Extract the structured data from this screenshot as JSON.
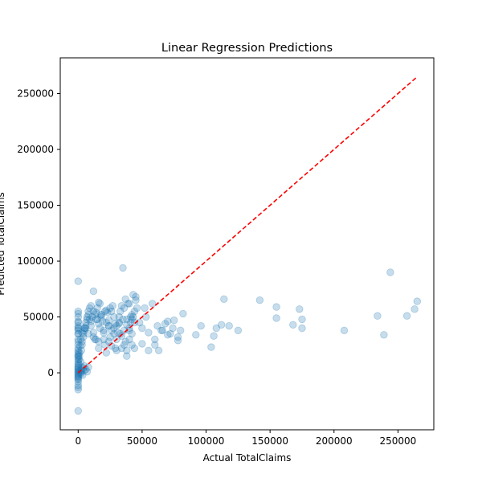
{
  "chart_data": {
    "type": "scatter",
    "title": "Linear Regression Predictions",
    "xlabel": "Actual TotalClaims",
    "ylabel": "Predicted TotalClaims",
    "xlim": [
      -14000,
      278000
    ],
    "ylim": [
      -51000,
      282000
    ],
    "xticks": [
      0,
      50000,
      100000,
      150000,
      200000,
      250000
    ],
    "yticks": [
      0,
      50000,
      100000,
      150000,
      200000,
      250000
    ],
    "grid": false,
    "colors": {
      "points": "#1f77b4",
      "reference_line": "#ff0000"
    },
    "points": {
      "name": "Predictions",
      "x": [
        0,
        0,
        0,
        0,
        0,
        0,
        0,
        0,
        0,
        0,
        0,
        0,
        0,
        0,
        0,
        0,
        0,
        0,
        0,
        0,
        0,
        0,
        0,
        0,
        0,
        0,
        0,
        0,
        0,
        0,
        0,
        0,
        0,
        0,
        0,
        0,
        0,
        0,
        0,
        0,
        0,
        0,
        1500,
        1500,
        2000,
        2500,
        2500,
        3000,
        3500,
        4000,
        4500,
        5000,
        6000,
        7000,
        8000,
        1000,
        2500,
        3000,
        4000,
        5000,
        6000,
        7000,
        8000,
        10000,
        2000,
        3000,
        4000,
        5000,
        6000,
        7000,
        8000,
        9000,
        500,
        700,
        1000,
        1500,
        2000,
        3000,
        10000,
        12000,
        14000,
        15000,
        16000,
        18000,
        20000,
        22000,
        24000,
        26000,
        28000,
        30000,
        32000,
        34000,
        36000,
        38000,
        40000,
        42000,
        44000,
        46000,
        11000,
        13000,
        15000,
        17000,
        19000,
        21000,
        23000,
        25000,
        27000,
        29000,
        31000,
        33000,
        35000,
        37000,
        39000,
        41000,
        43000,
        45000,
        12000,
        14000,
        16000,
        18000,
        20000,
        22000,
        24000,
        26000,
        28000,
        30000,
        32000,
        34000,
        36000,
        38000,
        40000,
        42000,
        44000,
        6000,
        8000,
        10000,
        12000,
        14000,
        16000,
        18000,
        20000,
        22000,
        24000,
        26000,
        28000,
        30000,
        32000,
        34000,
        36000,
        38000,
        40000,
        42000,
        44000,
        5000,
        9000,
        13000,
        17000,
        21000,
        25000,
        29000,
        33000,
        37000,
        41000,
        45000,
        16000,
        24000,
        38000,
        40000,
        42000,
        35000,
        43000,
        12000,
        48000,
        50000,
        52000,
        53000,
        55000,
        58000,
        60000,
        62000,
        65000,
        68000,
        70000,
        72000,
        75000,
        78000,
        80000,
        82000,
        50000,
        55000,
        60000,
        63000,
        66000,
        70000,
        74000,
        78000,
        92000,
        96000,
        104000,
        106000,
        108000,
        112000,
        114000,
        118000,
        125000,
        142000,
        155000,
        155000,
        168000,
        173000,
        175000,
        175000,
        208000,
        234000,
        239000,
        244000,
        257000,
        263000,
        265000
      ],
      "y": [
        0,
        -1000,
        -2000,
        -3000,
        1000,
        2000,
        3000,
        4000,
        -4000,
        5000,
        -5000,
        6000,
        8000,
        10000,
        12000,
        15000,
        18000,
        20000,
        25000,
        28000,
        30000,
        35000,
        38000,
        40000,
        42000,
        45000,
        50000,
        53000,
        55000,
        -8000,
        -11000,
        -13000,
        -34000,
        82000,
        40000,
        46000,
        35000,
        22000,
        16000,
        14000,
        -6000,
        -15000,
        0,
        2000,
        -1000,
        3000,
        1000,
        5000,
        -2000,
        4000,
        2000,
        6000,
        3000,
        1000,
        5000,
        15000,
        20000,
        25000,
        35000,
        40000,
        45000,
        50000,
        55000,
        60000,
        10000,
        28000,
        32000,
        38000,
        42000,
        48000,
        52000,
        58000,
        8000,
        12000,
        18000,
        24000,
        30000,
        36000,
        42000,
        55000,
        30000,
        48000,
        22000,
        52000,
        38000,
        45000,
        28000,
        55000,
        35000,
        42000,
        50000,
        60000,
        25000,
        48000,
        38000,
        52000,
        45000,
        58000,
        50000,
        30000,
        58000,
        40000,
        46000,
        25000,
        54000,
        32000,
        60000,
        44000,
        36000,
        55000,
        48000,
        28000,
        62000,
        45000,
        50000,
        65000,
        36000,
        48000,
        44000,
        52000,
        30000,
        56000,
        42000,
        38000,
        50000,
        20000,
        45000,
        33000,
        58000,
        43000,
        40000,
        35000,
        55000,
        40000,
        35000,
        46000,
        32000,
        54000,
        28000,
        50000,
        36000,
        18000,
        42000,
        24000,
        40000,
        30000,
        44000,
        22000,
        38000,
        20000,
        30000,
        25000,
        22000,
        40000,
        48000,
        52000,
        62000,
        55000,
        58000,
        22000,
        35000,
        66000,
        50000,
        68000,
        63000,
        47000,
        15000,
        62000,
        48000,
        94000,
        70000,
        73000,
        45000,
        40000,
        58000,
        50000,
        36000,
        62000,
        30000,
        42000,
        38000,
        44000,
        46000,
        35000,
        47000,
        32000,
        38000,
        53000,
        26000,
        20000,
        25000,
        20000,
        38000,
        34000,
        40000,
        29000,
        34000,
        42000,
        23000,
        33000,
        40000,
        43000,
        66000,
        42000,
        38000,
        65000,
        49000,
        59000,
        43000,
        57000,
        48000,
        40000,
        38000,
        51000,
        34000,
        90000,
        51000,
        57000,
        64000
      ]
    },
    "reference_line": {
      "style": "dashed",
      "from": [
        0,
        0
      ],
      "to": [
        265000,
        265000
      ]
    }
  }
}
